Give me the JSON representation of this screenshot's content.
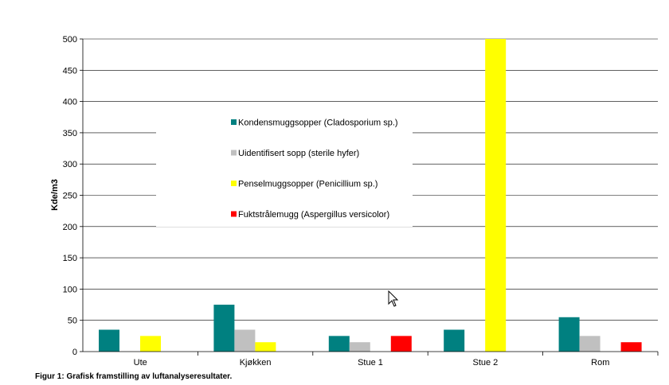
{
  "caption": "Figur 1: Grafisk framstilling av luftanalyseresultater.",
  "chart_data": {
    "type": "bar",
    "ylabel": "Kde/m3",
    "ylim": [
      0,
      500
    ],
    "yticks": [
      0,
      50,
      100,
      150,
      200,
      250,
      300,
      350,
      400,
      450,
      500
    ],
    "categories": [
      "Ute",
      "Kjøkken",
      "Stue 1",
      "Stue 2",
      "Rom"
    ],
    "grid": true,
    "legend_position": "center",
    "series": [
      {
        "name": "Kondensmuggsopper (Cladosporium sp.)",
        "color": "#008080",
        "values": [
          35,
          75,
          25,
          35,
          55
        ]
      },
      {
        "name": "Uidentifisert sopp (sterile hyfer)",
        "color": "#c0c0c0",
        "values": [
          0,
          35,
          15,
          0,
          25
        ]
      },
      {
        "name": "Penselmuggsopper (Penicillium sp.)",
        "color": "#ffff00",
        "values": [
          25,
          15,
          0,
          500,
          0
        ]
      },
      {
        "name": "Fuktstrålemugg (Aspergillus versicolor)",
        "color": "#ff0000",
        "values": [
          0,
          0,
          25,
          0,
          15
        ]
      }
    ]
  }
}
